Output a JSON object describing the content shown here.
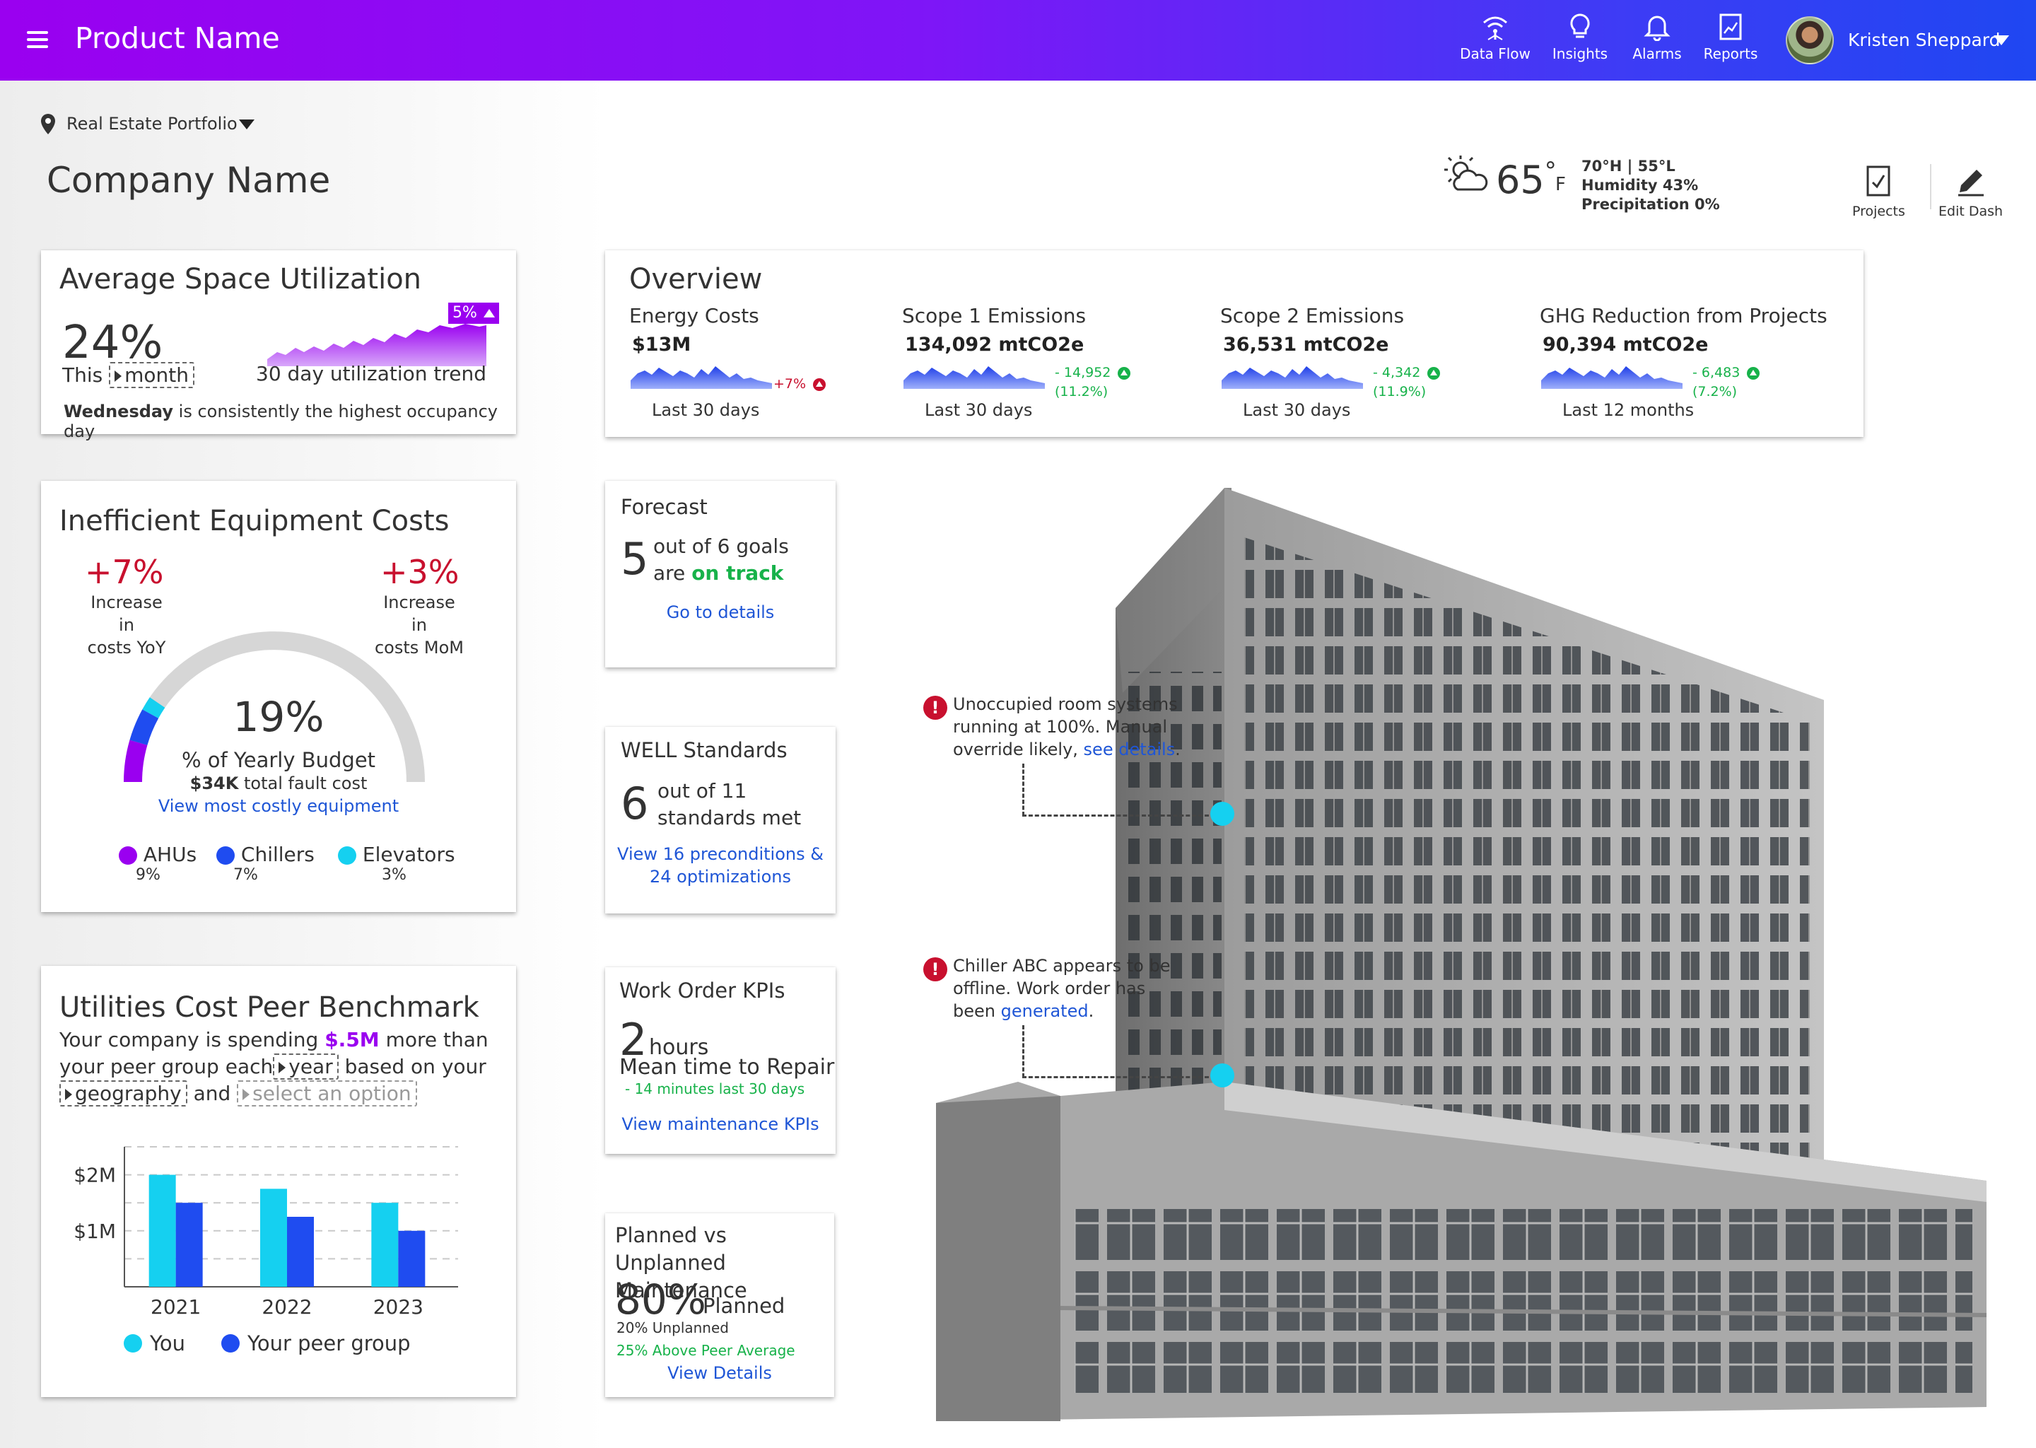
{
  "header": {
    "product_name": "Product Name",
    "nav": [
      {
        "label": "Data Flow",
        "icon": "data-flow-icon"
      },
      {
        "label": "Insights",
        "icon": "lightbulb-icon"
      },
      {
        "label": "Alarms",
        "icon": "bell-icon"
      },
      {
        "label": "Reports",
        "icon": "report-icon"
      }
    ],
    "user_name": "Kristen Sheppard"
  },
  "context": {
    "portfolio": "Real Estate Portfolio",
    "company_name": "Company Name"
  },
  "weather": {
    "temp": "65",
    "degree": "°",
    "unit": "F",
    "high_low": "70°H | 55°L",
    "humidity": "Humidity 43%",
    "precipitation": "Precipitation 0%"
  },
  "tools": {
    "projects": "Projects",
    "edit_dash": "Edit Dash"
  },
  "space_utilization": {
    "title": "Average Space Utilization",
    "value": "24%",
    "this_label": "This",
    "period": "month",
    "trend_badge": "5%",
    "trend_label": "30 day utilization trend",
    "footnote_bold": "Wednesday",
    "footnote_rest": "is consistently the highest occupancy day"
  },
  "overview": {
    "title": "Overview",
    "metrics": [
      {
        "title": "Energy Costs",
        "value": "$13M",
        "delta_1": "+7%",
        "delta_2": "",
        "sub": "Last 30 days",
        "trend": "bad"
      },
      {
        "title": "Scope 1 Emissions",
        "value": "134,092 mtCO2e",
        "delta_1": "- 14,952",
        "delta_2": "(11.2%)",
        "sub": "Last 30 days",
        "trend": "good"
      },
      {
        "title": "Scope 2 Emissions",
        "value": "36,531 mtCO2e",
        "delta_1": "- 4,342",
        "delta_2": "(11.9%)",
        "sub": "Last 30 days",
        "trend": "good"
      },
      {
        "title": "GHG Reduction from Projects",
        "value": "90,394 mtCO2e",
        "delta_1": "- 6,483",
        "delta_2": "(7.2%)",
        "sub": "Last 12 months",
        "trend": "good"
      }
    ]
  },
  "equipment_costs": {
    "title": "Inefficient Equipment Costs",
    "yoy_value": "+7%",
    "yoy_label_1": "Increase in",
    "yoy_label_2": "costs YoY",
    "mom_value": "+3%",
    "mom_label_1": "Increase in",
    "mom_label_2": "costs MoM",
    "gauge_value": "19%",
    "gauge_percent": 19,
    "gauge_label": "% of Yearly Budget",
    "fault_bold": "$34K",
    "fault_rest": "total fault cost",
    "link": "View most costly equipment",
    "legend": [
      {
        "name": "AHUs",
        "value": "9%",
        "color": "#9a00f0"
      },
      {
        "name": "Chillers",
        "value": "7%",
        "color": "#1f4cf0"
      },
      {
        "name": "Elevators",
        "value": "3%",
        "color": "#15d0f0"
      }
    ]
  },
  "forecast": {
    "title": "Forecast",
    "number": "5",
    "line1": "out of 6 goals",
    "line2_pre": "are",
    "line2_em": "on track",
    "link": "Go to details"
  },
  "well": {
    "title": "WELL Standards",
    "number": "6",
    "line1": "out of 11",
    "line2": "standards met",
    "link_1": "View  16 preconditions &",
    "link_2": "24 optimizations"
  },
  "work_order": {
    "title": "Work Order KPIs",
    "number": "2",
    "unit": "hours",
    "label": "Mean time to Repair",
    "delta": "- 14 minutes last 30 days",
    "link": "View maintenance  KPIs"
  },
  "maintenance": {
    "title_1": "Planned vs Unplanned",
    "title_2": "Maintenance",
    "value": "80%",
    "value_label": "Planned",
    "unplanned": "20% Unplanned",
    "peer": "25% Above Peer Average",
    "link": "View Details"
  },
  "benchmark": {
    "title": "Utilities Cost Peer Benchmark",
    "line1_pre": "Your company is spending",
    "line1_amount": "$.5M",
    "line1_post": "more than",
    "line2_pre": "your peer group each",
    "period": "year",
    "line2_post": "based on your",
    "geography": "geography",
    "and": "and",
    "select_placeholder": "select an option"
  },
  "alerts": [
    {
      "line1": "Unoccupied room systems",
      "line2": "running at 100%. Manual",
      "line3_pre": "override likely,",
      "link": "see details",
      "line3_post": "."
    },
    {
      "line1": "Chiller ABC appears to be",
      "line2": "offline. Work order has",
      "line3_pre": "been",
      "link": "generated",
      "line3_post": "."
    }
  ],
  "chart_data": {
    "type": "bar",
    "categories": [
      "2021",
      "2022",
      "2023"
    ],
    "series": [
      {
        "name": "You",
        "values": [
          2.0,
          1.75,
          1.5
        ],
        "color": "#15d0f0"
      },
      {
        "name": "Your peer group",
        "values": [
          1.5,
          1.25,
          1.0
        ],
        "color": "#1f4cf0"
      }
    ],
    "ytick_labels": [
      "$1M",
      "$2M"
    ],
    "ytick_values": [
      1,
      2
    ],
    "ylim": [
      0,
      2.5
    ],
    "grid": true,
    "legend_position": "bottom"
  }
}
